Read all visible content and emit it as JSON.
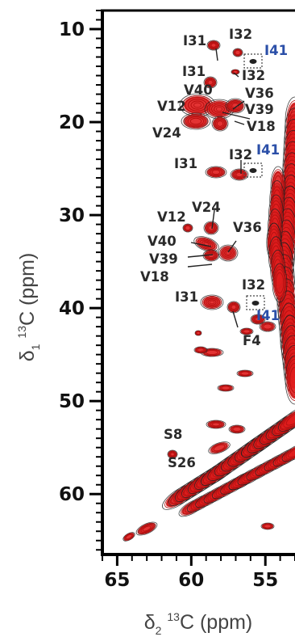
{
  "chart_data": {
    "type": "scatter",
    "subtype": "2D NMR 13C-13C correlation spectrum (contour plot, two overlaid spectra)",
    "xlabel": "δ2 13C (ppm)",
    "ylabel": "δ1 13C (ppm)",
    "x_axis": {
      "symbol": "δ",
      "subscript": "2",
      "superscript": "13",
      "nucleus": "C (ppm)"
    },
    "y_axis": {
      "symbol": "δ",
      "subscript": "1",
      "superscript": "13",
      "nucleus": "C (ppm)"
    },
    "xlim": [
      66,
      53
    ],
    "ylim": [
      8,
      66.5
    ],
    "x_ticks": [
      "65",
      "60",
      "55"
    ],
    "y_ticks": [
      "10",
      "20",
      "30",
      "40",
      "50",
      "60"
    ],
    "x_tick_values": [
      65,
      60,
      55
    ],
    "y_tick_values": [
      10,
      20,
      30,
      40,
      50,
      60
    ],
    "x_reversed": true,
    "y_reversed": true,
    "grid": false,
    "series_colors": {
      "spectrum_a": "#e01d1d",
      "spectrum_b": "#222222"
    },
    "labeled_peaks": [
      {
        "label": "I31",
        "x": 58.5,
        "y": 11.8
      },
      {
        "label": "I32",
        "x": 56.8,
        "y": 12.6
      },
      {
        "label": "I41",
        "x": 55.9,
        "y": 13.4,
        "color": "#2b4fa8"
      },
      {
        "label": "I31",
        "x": 58.8,
        "y": 15.7
      },
      {
        "label": "I32",
        "x": 56.7,
        "y": 14.5
      },
      {
        "label": "V40",
        "x": 58.7,
        "y": 17.9
      },
      {
        "label": "V36",
        "x": 57.3,
        "y": 17.4
      },
      {
        "label": "V12",
        "x": 60.2,
        "y": 19.0
      },
      {
        "label": "V39",
        "x": 57.4,
        "y": 19.0
      },
      {
        "label": "V18",
        "x": 57.8,
        "y": 20.4
      },
      {
        "label": "V24",
        "x": 59.3,
        "y": 21.6
      },
      {
        "label": "I31",
        "x": 58.6,
        "y": 25.4
      },
      {
        "label": "I32",
        "x": 56.9,
        "y": 25.5
      },
      {
        "label": "I41",
        "x": 55.9,
        "y": 24.9,
        "color": "#2b4fa8"
      },
      {
        "label": "V12",
        "x": 60.2,
        "y": 31.0
      },
      {
        "label": "V24",
        "x": 58.9,
        "y": 31.1
      },
      {
        "label": "V36",
        "x": 57.0,
        "y": 33.5
      },
      {
        "label": "V40",
        "x": 59.7,
        "y": 32.8
      },
      {
        "label": "V39",
        "x": 59.0,
        "y": 33.8
      },
      {
        "label": "V18",
        "x": 58.0,
        "y": 34.5
      },
      {
        "label": "I31",
        "x": 58.8,
        "y": 38.8
      },
      {
        "label": "I32",
        "x": 55.9,
        "y": 38.8
      },
      {
        "label": "F4",
        "x": 57.0,
        "y": 39.8
      },
      {
        "label": "I41",
        "x": 55.5,
        "y": 41.0,
        "color": "#2b4fa8"
      },
      {
        "label": "S8",
        "x": 62.8,
        "y": 54.8
      },
      {
        "label": "S26",
        "x": 57.6,
        "y": 58.3
      }
    ],
    "dashed_boxes_around": [
      "I41",
      "I41",
      "I41"
    ]
  }
}
